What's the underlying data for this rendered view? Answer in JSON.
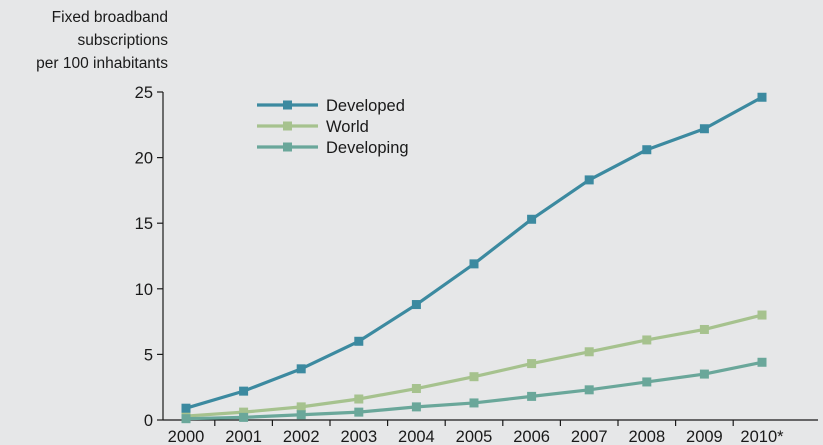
{
  "chart_data": {
    "type": "line",
    "ylabel_lines": [
      "Fixed broadband",
      "subscriptions",
      "per 100 inhabitants"
    ],
    "categories": [
      "2000",
      "2001",
      "2002",
      "2003",
      "2004",
      "2005",
      "2006",
      "2007",
      "2008",
      "2009",
      "2010*"
    ],
    "ylim": [
      0,
      25
    ],
    "yticks": [
      0,
      5,
      10,
      15,
      20,
      25
    ],
    "grid": false,
    "legend_position": "top-left",
    "series": [
      {
        "name": "Developed",
        "color": "#3c8aa0",
        "values": [
          0.9,
          2.2,
          3.9,
          6.0,
          8.8,
          11.9,
          15.3,
          18.3,
          20.6,
          22.2,
          24.6
        ]
      },
      {
        "name": "World",
        "color": "#a6c28e",
        "values": [
          0.3,
          0.6,
          1.0,
          1.6,
          2.4,
          3.3,
          4.3,
          5.2,
          6.1,
          6.9,
          8.0
        ]
      },
      {
        "name": "Developing",
        "color": "#6aa79a",
        "values": [
          0.1,
          0.2,
          0.4,
          0.6,
          1.0,
          1.3,
          1.8,
          2.3,
          2.9,
          3.5,
          4.4
        ]
      }
    ]
  }
}
